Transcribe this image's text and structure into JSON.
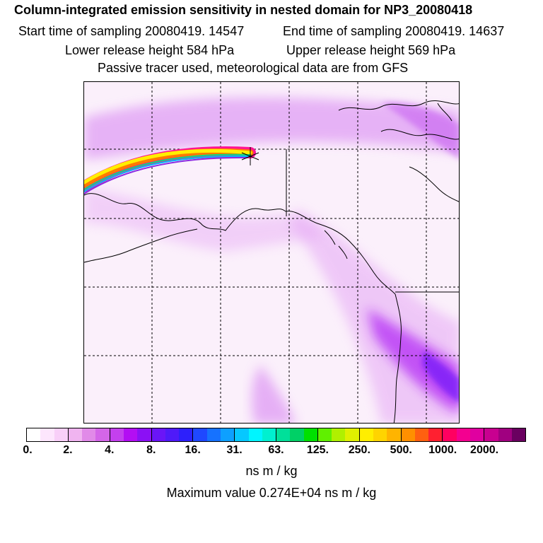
{
  "header": {
    "title": "Column-integrated emission sensitivity in nested domain for NP3_20080418",
    "start_label": "Start time of sampling 20080419. 14547",
    "end_label": "End time of sampling 20080419. 14637",
    "lower_label": "Lower release height  584 hPa",
    "upper_label": "Upper release height  569 hPa",
    "tracer_label": "Passive tracer used, meteorological data are from GFS"
  },
  "colorbar": {
    "colors": [
      "#ffffff",
      "#fde6fd",
      "#f8cff8",
      "#f0b4f0",
      "#e18ae8",
      "#d466e8",
      "#c440ee",
      "#b30ef3",
      "#8b10f5",
      "#6a15f7",
      "#4f1af9",
      "#2d20fb",
      "#1f48ff",
      "#1672ff",
      "#0ea0ff",
      "#06c8ff",
      "#00f5ff",
      "#00f0d0",
      "#00e09a",
      "#00d066",
      "#00e000",
      "#60f000",
      "#b0f000",
      "#e0f000",
      "#ffee00",
      "#ffd400",
      "#ffb400",
      "#ff9000",
      "#ff6010",
      "#ff2030",
      "#ff0060",
      "#f40090",
      "#e000a0",
      "#c80090",
      "#a00080",
      "#6a0060"
    ],
    "tick_labels": [
      "0.",
      "2.",
      "4.",
      "8.",
      "16.",
      "31.",
      "63.",
      "125.",
      "250.",
      "500.",
      "1000.",
      "2000."
    ],
    "units": "ns m / kg"
  },
  "footer": {
    "max_value_label": "Maximum value  0.274E+04 ns m / kg"
  },
  "map": {
    "trajectory_colors": [
      "#ff1493",
      "#ff00aa",
      "#ff6600",
      "#ffee00",
      "#00ff80",
      "#00c8ff",
      "#8a2be2"
    ],
    "background_color": "#fbf0fb",
    "plume_color": "#b400ff"
  }
}
